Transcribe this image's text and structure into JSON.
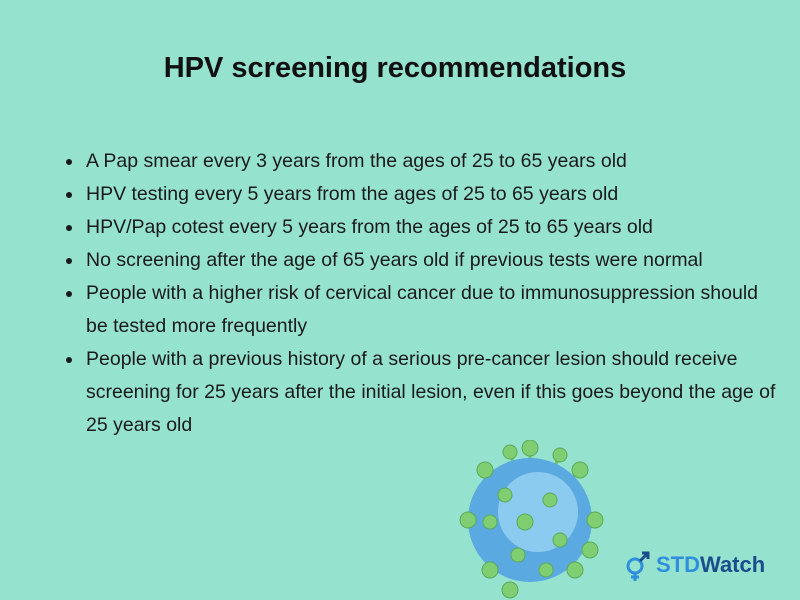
{
  "title": "HPV screening recommendations",
  "bullets": [
    "A Pap smear every 3 years from the ages of 25 to 65 years old",
    "HPV testing every 5 years from the ages of 25 to 65 years old",
    "HPV/Pap cotest every 5 years from the ages of 25 to 65 years old",
    "No screening after the age of 65 years old if previous tests were normal",
    "People with a higher risk of cervical cancer due to immunosuppression should be tested more frequently",
    "People with a previous history of a serious pre-cancer lesion should receive screening for 25 years after the initial lesion, even if this goes beyond the age of 25 years old"
  ],
  "logo": {
    "part1": "STD",
    "part2": "Watch"
  }
}
